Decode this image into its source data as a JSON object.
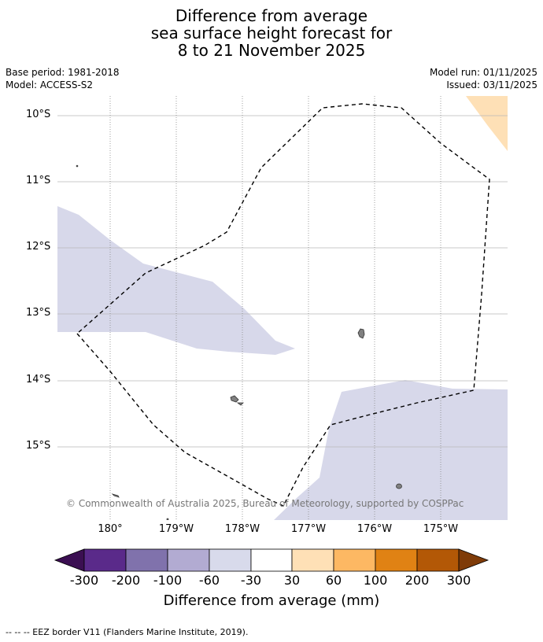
{
  "title": {
    "line1": "Difference from average",
    "line2": "sea surface height forecast for",
    "line3": "8 to 21 November 2025"
  },
  "meta": {
    "base_period": "Base period: 1981-2018",
    "model": "Model: ACCESS-S2",
    "model_run": "Model run: 01/11/2025",
    "issued": "Issued: 03/11/2025"
  },
  "map": {
    "lat_labels": [
      "10°S",
      "11°S",
      "12°S",
      "13°S",
      "14°S",
      "15°S"
    ],
    "lon_labels": [
      "180°",
      "179°W",
      "178°W",
      "177°W",
      "176°W",
      "175°W"
    ],
    "gridlines": true,
    "copyright": "© Commonwealth of Australia 2025, Bureau of Meteorology, supported by COSPPac",
    "colors": {
      "land": "#808080",
      "anomaly_minus60_minus30": "#d7d8ea",
      "anomaly_30_60": "#fee0b6",
      "eez_border": "#000000"
    }
  },
  "colorbar": {
    "label": "Difference from average (mm)",
    "ticks": [
      "-300",
      "-200",
      "-100",
      "-60",
      "-30",
      "30",
      "60",
      "100",
      "200",
      "300"
    ],
    "colors": {
      "below_min": "#3b0f52",
      "bin1": "#5a2a8a",
      "bin2": "#8072ac",
      "bin3": "#b2abd2",
      "bin4": "#d8daeb",
      "bin5": "#ffffff",
      "bin6": "#fee0b6",
      "bin7": "#fdb863",
      "bin8": "#e08214",
      "bin9": "#b35806",
      "above_max": "#7f3b08"
    }
  },
  "footnote": "--  --  -- EEZ border V11 (Flanders Marine Institute, 2019)."
}
